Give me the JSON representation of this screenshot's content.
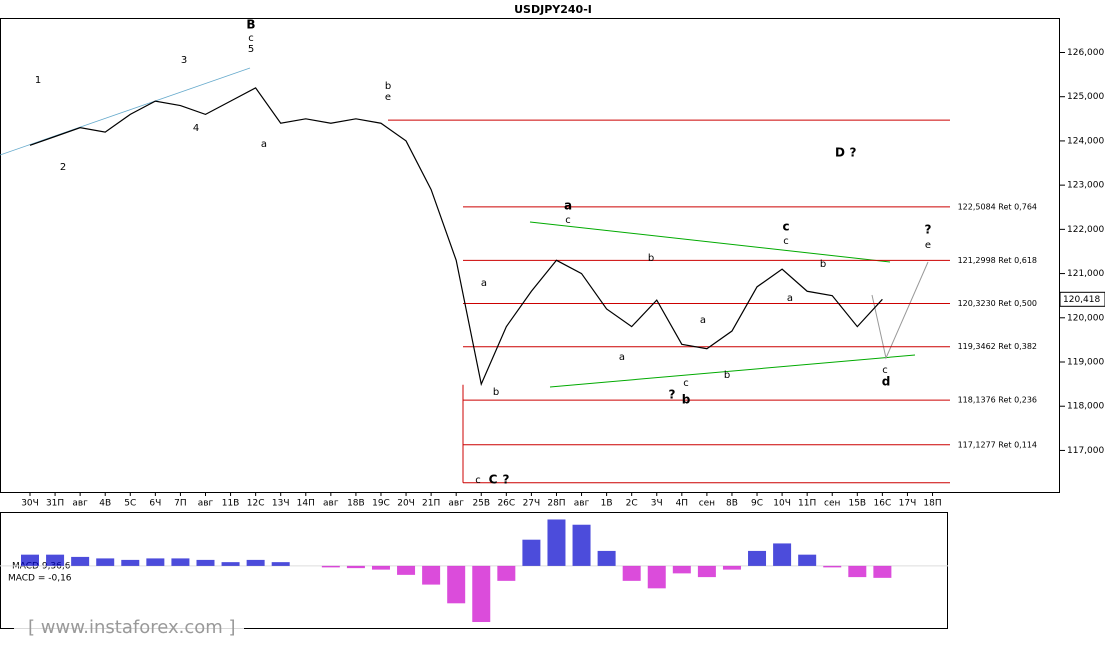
{
  "chart_data": [
    {
      "type": "line",
      "title": "USDJPY240-I",
      "categories": [
        "30Ч",
        "31П",
        "авг",
        "4В",
        "5С",
        "6Ч",
        "7П",
        "авг",
        "11В",
        "12С",
        "13Ч",
        "14П",
        "авг",
        "18В",
        "19С",
        "20Ч",
        "21П",
        "авг",
        "25В",
        "26С",
        "27Ч",
        "28П",
        "авг",
        "1В",
        "2С",
        "3Ч",
        "4П",
        "сен",
        "8В",
        "9С",
        "10Ч",
        "11П",
        "сен",
        "15В",
        "16С",
        "17Ч",
        "18П"
      ],
      "series": [
        {
          "color": "#000000",
          "values": [
            123.9,
            124.1,
            124.3,
            124.2,
            124.6,
            124.9,
            124.8,
            124.6,
            124.9,
            125.2,
            124.4,
            124.5,
            124.4,
            124.5,
            124.4,
            124.0,
            122.9,
            121.3,
            118.5,
            119.8,
            120.6,
            121.3,
            121.0,
            120.2,
            119.8,
            120.4,
            119.4,
            119.3,
            119.7,
            120.7,
            121.1,
            120.6,
            120.5,
            119.8,
            120.418,
            null,
            null
          ]
        }
      ],
      "ylim": [
        116.06,
        126.78
      ],
      "yticks": [
        {
          "value": 117,
          "label": "117,000"
        },
        {
          "value": 118,
          "label": "118,000"
        },
        {
          "value": 119,
          "label": "119,000"
        },
        {
          "value": 120,
          "label": "120,000"
        },
        {
          "value": 121,
          "label": "121,000"
        },
        {
          "value": 122,
          "label": "122,000"
        },
        {
          "value": 123,
          "label": "123,000"
        },
        {
          "value": 124,
          "label": "124,000"
        },
        {
          "value": 125,
          "label": "125,000"
        },
        {
          "value": 126,
          "label": "126,000"
        }
      ],
      "last_price": {
        "value": 120.418,
        "label": "120,418"
      },
      "levels": [
        {
          "value": 122.5084,
          "label": "122,5084 Ret 0,764"
        },
        {
          "value": 121.2998,
          "label": "121,2998 Ret 0,618"
        },
        {
          "value": 120.323,
          "label": "120,3230 Ret 0,500"
        },
        {
          "value": 119.3462,
          "label": "119,3462 Ret 0,382"
        },
        {
          "value": 118.1376,
          "label": "118,1376 Ret 0,236"
        },
        {
          "value": 117.1277,
          "label": "117,1277 Ret 0,114"
        },
        {
          "value": 124.47
        },
        {
          "value": 116.27
        }
      ],
      "level_color": "#cc0000",
      "annotations": [
        {
          "text": "B",
          "color": "#0000cc"
        },
        {
          "text": "c",
          "color": "#0000cc"
        },
        {
          "text": "5",
          "color": "#0000cc"
        },
        {
          "text": "a",
          "color": "#0000cc"
        },
        {
          "text": "b",
          "color": "#0000cc"
        },
        {
          "text": "e",
          "color": "#000000"
        },
        {
          "text": "c",
          "color": "#0000cc"
        },
        {
          "text": "C",
          "color": "#0000cc"
        },
        {
          "text": "?",
          "color": "#cc0000"
        },
        {
          "text": "a",
          "color": "#000000"
        },
        {
          "text": "c",
          "color": "#0000cc"
        },
        {
          "text": "b",
          "color": "#0000cc"
        },
        {
          "text": "a",
          "color": "#0000cc"
        },
        {
          "text": "?",
          "color": "#000000"
        },
        {
          "text": "b",
          "color": "#000000"
        },
        {
          "text": "c",
          "color": "#000000"
        },
        {
          "text": "c",
          "color": "#0000cc"
        },
        {
          "text": "D",
          "color": "#0000cc"
        },
        {
          "text": "?",
          "color": "#0000cc"
        },
        {
          "text": "?",
          "color": "#000000"
        },
        {
          "text": "e",
          "color": "#000000"
        },
        {
          "text": "c",
          "color": "#666666"
        },
        {
          "text": "d",
          "color": "#000000"
        },
        {
          "text": "1",
          "color": "#0000cc"
        },
        {
          "text": "2",
          "color": "#0000cc"
        },
        {
          "text": "3",
          "color": "#0000cc"
        },
        {
          "text": "4",
          "color": "#0000cc"
        },
        {
          "text": "b",
          "color": "#0000cc"
        },
        {
          "text": "a",
          "color": "#0000cc"
        },
        {
          "text": "c",
          "color": "#0000cc"
        },
        {
          "text": "b",
          "color": "#0000cc"
        },
        {
          "text": "a",
          "color": "#0000cc"
        },
        {
          "text": "a",
          "color": "#0000cc"
        },
        {
          "text": "b",
          "color": "#0000cc"
        }
      ]
    },
    {
      "type": "bar",
      "title": "MACD 9,36,6",
      "subtitle": "MACD = -0,16",
      "values": [
        0.15,
        0.15,
        0.12,
        0.1,
        0.08,
        0.1,
        0.1,
        0.08,
        0.05,
        0.08,
        0.05,
        0.0,
        -0.02,
        -0.03,
        -0.05,
        -0.12,
        -0.25,
        -0.5,
        -0.75,
        -0.2,
        0.35,
        0.62,
        0.55,
        0.2,
        -0.2,
        -0.3,
        -0.1,
        -0.15,
        -0.05,
        0.2,
        0.3,
        0.15,
        -0.02,
        -0.15,
        -0.16
      ],
      "ylim": [
        -0.83,
        0.72
      ],
      "positive_color": "#0000cc",
      "negative_color": "#cc00cc"
    }
  ],
  "watermark": "[ www.instaforex.com ]"
}
